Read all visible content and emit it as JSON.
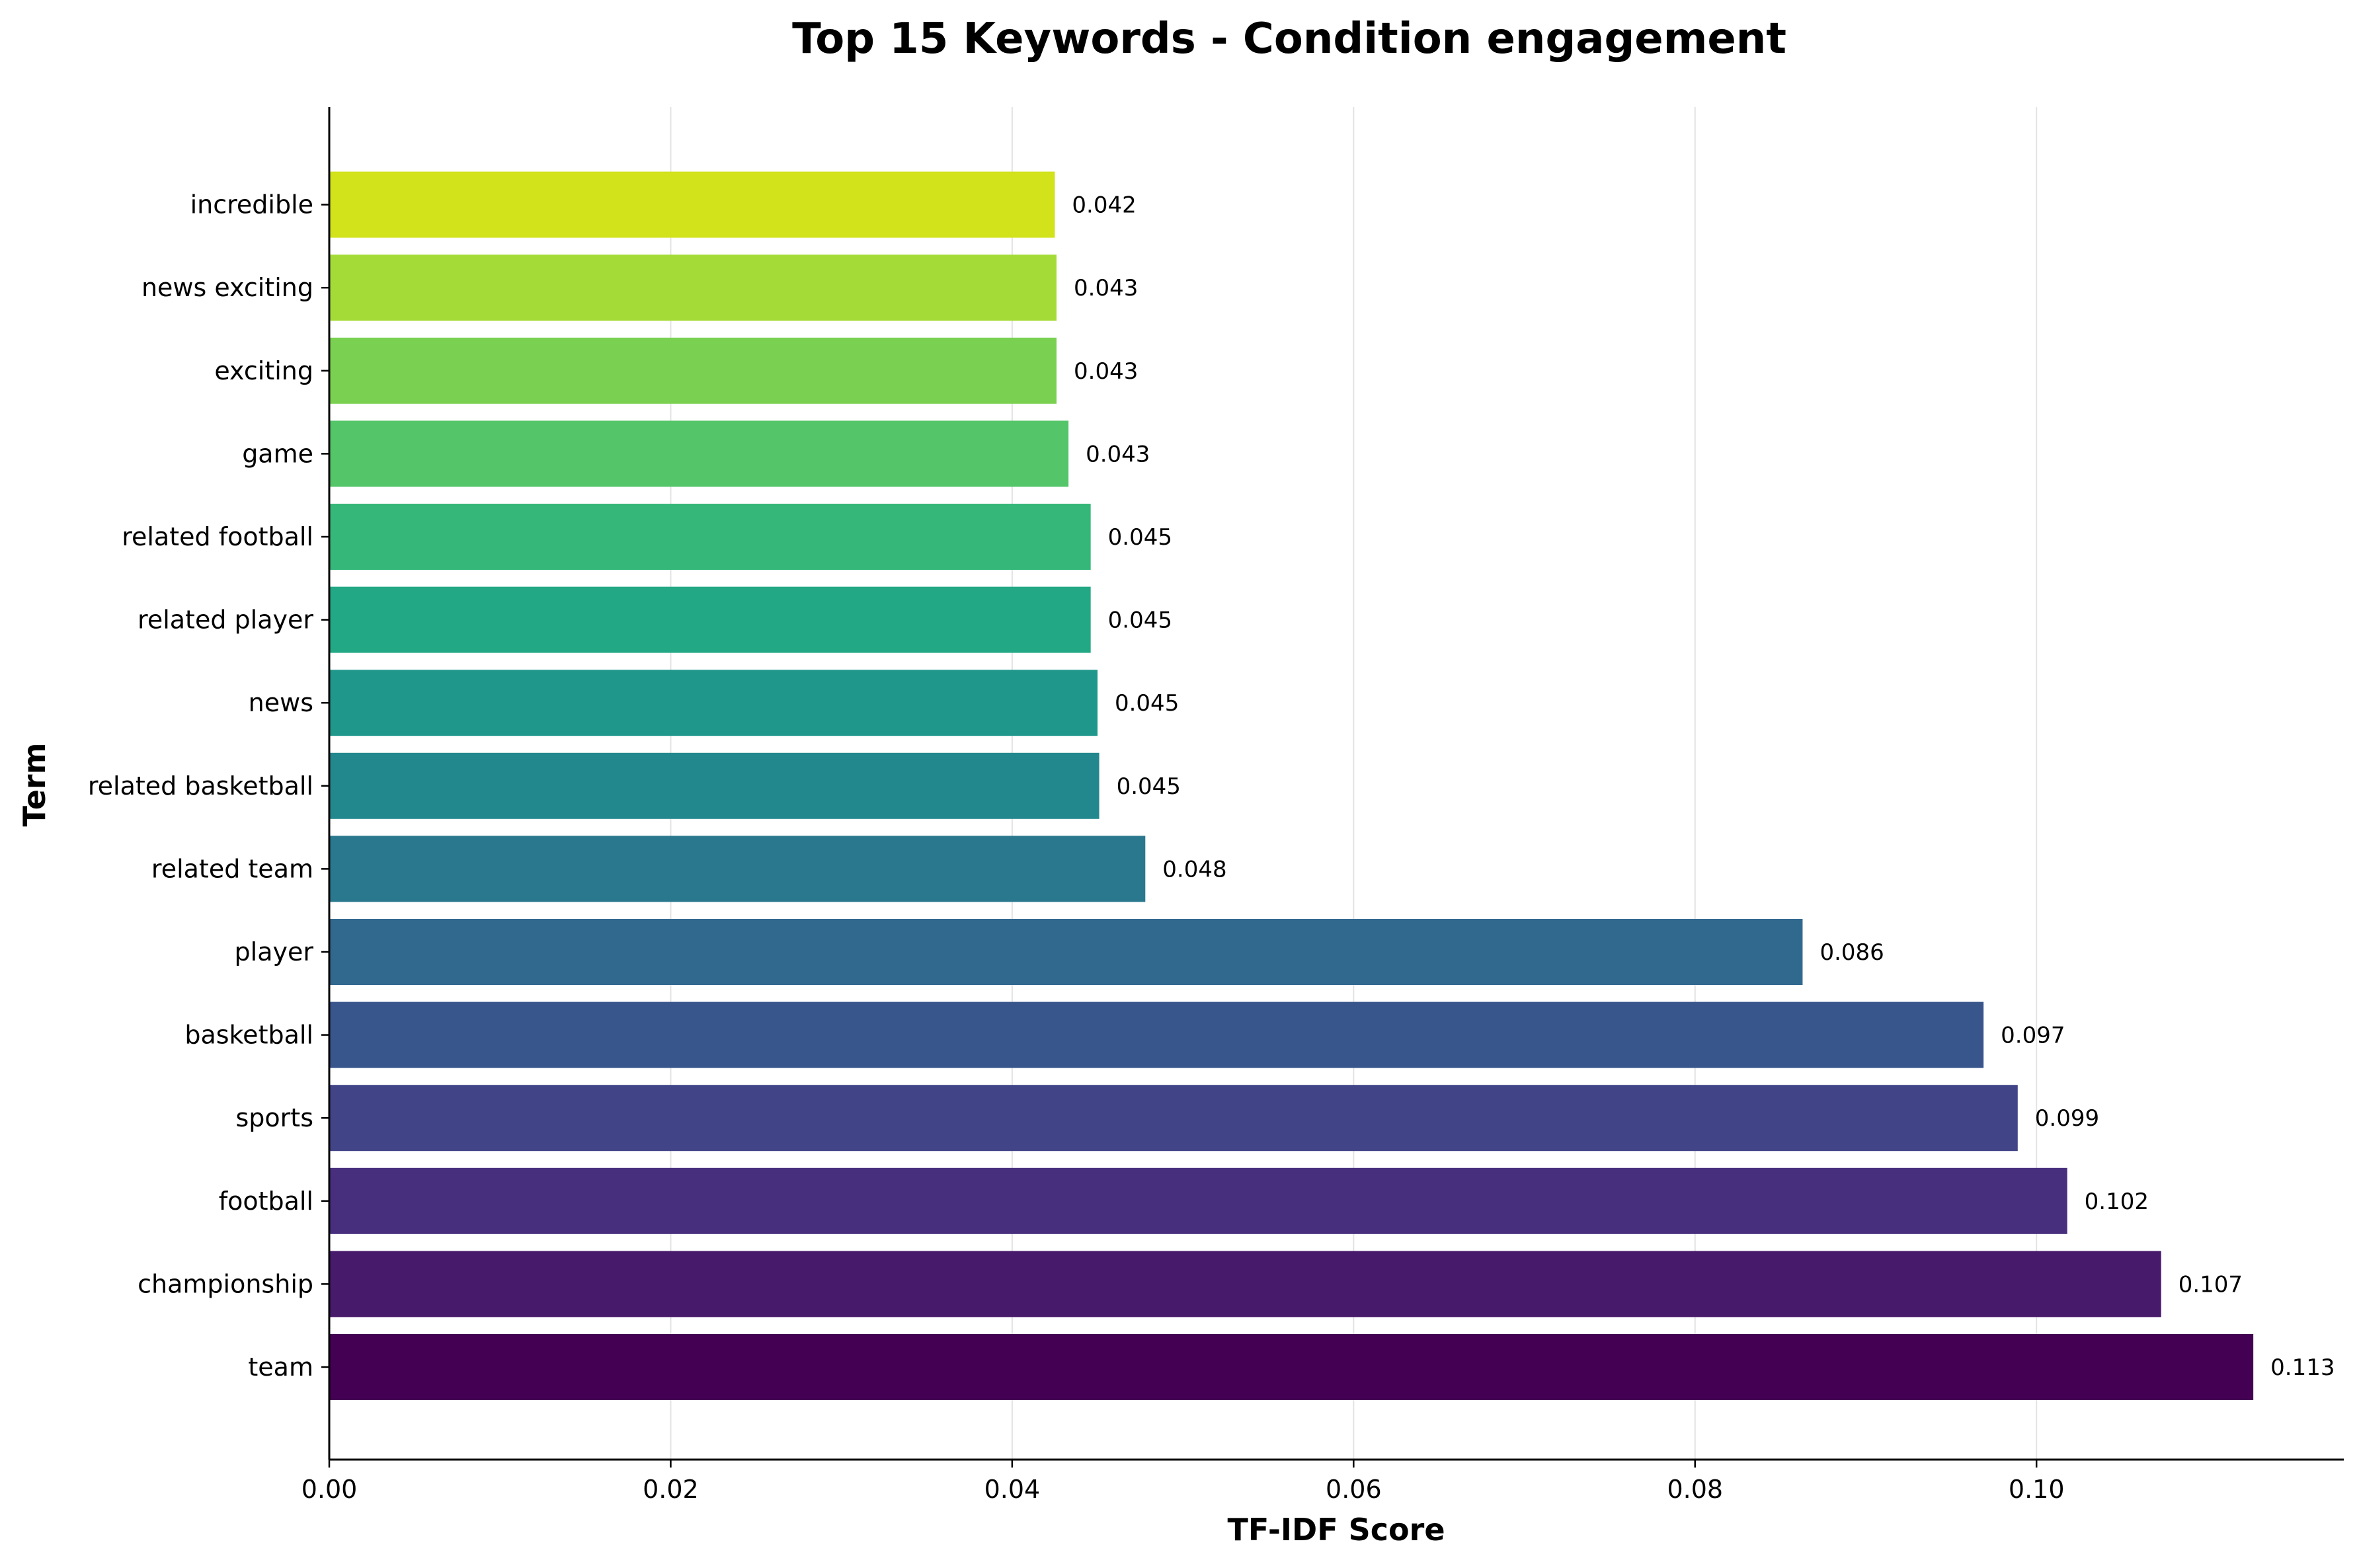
{
  "chart_data": {
    "type": "bar",
    "orientation": "horizontal",
    "title": "Top 15 Keywords - Condition engagement",
    "xlabel": "TF-IDF Score",
    "ylabel": "Term",
    "xlim": [
      0,
      0.118
    ],
    "xticks": [
      "0.00",
      "0.02",
      "0.04",
      "0.06",
      "0.08",
      "0.10"
    ],
    "grid": "vertical",
    "colormap": "viridis",
    "categories": [
      "team",
      "championship",
      "football",
      "sports",
      "basketball",
      "player",
      "related team",
      "related basketball",
      "news",
      "related player",
      "related football",
      "game",
      "exciting",
      "news exciting",
      "incredible"
    ],
    "values": [
      0.1127,
      0.1073,
      0.1018,
      0.0989,
      0.0969,
      0.0863,
      0.0478,
      0.0451,
      0.045,
      0.0446,
      0.0446,
      0.0433,
      0.0426,
      0.0426,
      0.0425
    ],
    "value_labels": [
      "0.113",
      "0.107",
      "0.102",
      "0.099",
      "0.097",
      "0.086",
      "0.048",
      "0.045",
      "0.045",
      "0.045",
      "0.045",
      "0.043",
      "0.043",
      "0.043",
      "0.042"
    ],
    "colors": [
      "#440154",
      "#481a6c",
      "#472f7d",
      "#414487",
      "#39568c",
      "#31688e",
      "#2a788e",
      "#23888e",
      "#1f988b",
      "#22a884",
      "#35b779",
      "#54c568",
      "#7ad151",
      "#a5db36",
      "#d2e21b",
      "#fde725"
    ]
  }
}
